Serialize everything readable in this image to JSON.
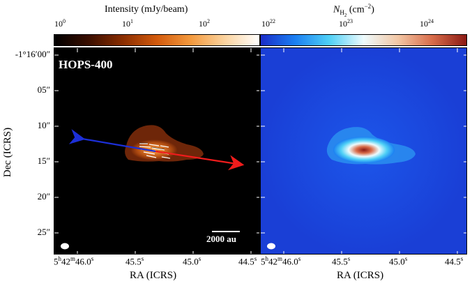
{
  "colorbar_left": {
    "title": "Intensity (mJy/beam)",
    "ticks": [
      {
        "base": "10",
        "exp": "0"
      },
      {
        "base": "10",
        "exp": "1"
      },
      {
        "base": "10",
        "exp": "2"
      }
    ],
    "colors": [
      "#000000",
      "#3a0e00",
      "#8a2d00",
      "#d35a0c",
      "#f39a3e",
      "#fbd4a0",
      "#ffffff"
    ]
  },
  "colorbar_right": {
    "title_symbol": "N",
    "title_sub": "H",
    "title_sub2": "2",
    "title_unit": " (cm",
    "title_unit_exp": "−2",
    "title_unit_close": ")",
    "ticks": [
      {
        "base": "10",
        "exp": "22"
      },
      {
        "base": "10",
        "exp": "23"
      },
      {
        "base": "10",
        "exp": "24"
      }
    ],
    "colors": [
      "#1a2cc8",
      "#1b7ff2",
      "#4fd0f6",
      "#eefbfd",
      "#f2c7a5",
      "#d86c4a",
      "#8c1a14"
    ]
  },
  "left_panel": {
    "source_name": "HOPS-400",
    "scalebar_label": "2000 au",
    "outflow_blue": "#1c2fd8",
    "outflow_red": "#f01c1c"
  },
  "y_axis": {
    "label": "Dec (ICRS)",
    "ticks": [
      "-1°16′00″",
      "05″",
      "10″",
      "15″",
      "20″",
      "25″"
    ]
  },
  "x_axis": {
    "label": "RA (ICRS)",
    "ticks": [
      {
        "pre": "5",
        "s1": "h",
        "mid": "42",
        "s2": "m",
        "post": "46.0",
        "s3": "s"
      },
      {
        "pre": "",
        "s1": "",
        "mid": "",
        "s2": "",
        "post": "45.5",
        "s3": "s"
      },
      {
        "pre": "",
        "s1": "",
        "mid": "",
        "s2": "",
        "post": "45.0",
        "s3": "s"
      },
      {
        "pre": "",
        "s1": "",
        "mid": "",
        "s2": "",
        "post": "44.5",
        "s3": "s"
      }
    ]
  }
}
